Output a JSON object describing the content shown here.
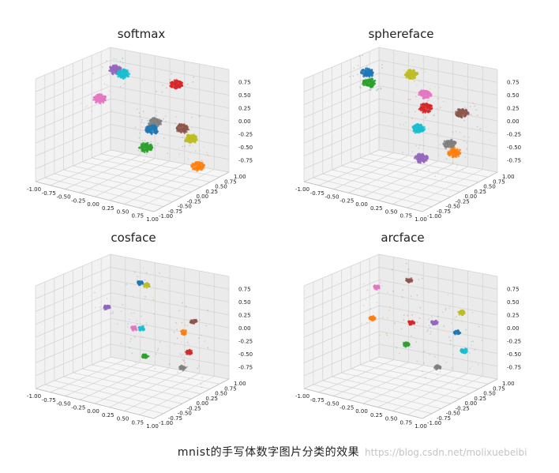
{
  "caption": "mnist的手写体数字图片分类的效果",
  "watermark": "https://blog.csdn.net/molixuebeibi",
  "chart_data": [
    {
      "type": "scatter",
      "title": "softmax",
      "xlim": [
        -1.0,
        1.0
      ],
      "ylim": [
        -1.0,
        1.0
      ],
      "zlim": [
        -1.0,
        1.0
      ],
      "x_ticks": [
        "-1.00",
        "-0.75",
        "-0.50",
        "-0.25",
        "0.00",
        "0.25",
        "0.50",
        "0.75",
        "1.00"
      ],
      "y_ticks": [
        "-1.00",
        "-0.75",
        "-0.50",
        "-0.25",
        "0.00",
        "0.25",
        "0.50",
        "0.75",
        "1.00"
      ],
      "z_ticks": [
        "-0.75",
        "-0.50",
        "-0.25",
        "0.00",
        "0.25",
        "0.50",
        "0.75"
      ],
      "grid": true,
      "clusters": [
        {
          "color": "#9467bd",
          "x": -0.55,
          "y": 0.3,
          "z": 0.75
        },
        {
          "color": "#17becf",
          "x": -0.4,
          "y": 0.35,
          "z": 0.72
        },
        {
          "color": "#d62728",
          "x": 0.55,
          "y": 0.55,
          "z": 0.8
        },
        {
          "color": "#e377c2",
          "x": -0.95,
          "y": -0.2,
          "z": 0.05
        },
        {
          "color": "#8c564b",
          "x": 0.55,
          "y": 0.2,
          "z": -0.05
        },
        {
          "color": "#bcbd22",
          "x": 0.7,
          "y": 0.2,
          "z": -0.2
        },
        {
          "color": "#7f7f7f",
          "x": -0.05,
          "y": -0.3,
          "z": -0.15
        },
        {
          "color": "#1f77b4",
          "x": -0.1,
          "y": -0.3,
          "z": -0.3
        },
        {
          "color": "#2ca02c",
          "x": -0.35,
          "y": -0.8,
          "z": -0.75
        },
        {
          "color": "#ff7f0e",
          "x": 0.7,
          "y": -0.2,
          "z": -0.75
        }
      ]
    },
    {
      "type": "scatter",
      "title": "sphereface",
      "xlim": [
        -1.0,
        1.0
      ],
      "ylim": [
        -1.0,
        1.0
      ],
      "zlim": [
        -1.0,
        1.0
      ],
      "x_ticks": [
        "-1.00",
        "-0.75",
        "-0.50",
        "-0.25",
        "0.00",
        "0.25",
        "0.50",
        "0.75",
        "1.00"
      ],
      "y_ticks": [
        "-1.00",
        "-0.75",
        "-0.50",
        "-0.25",
        "0.00",
        "0.25",
        "0.50",
        "0.75",
        "1.00"
      ],
      "z_ticks": [
        "-0.75",
        "-0.50",
        "-0.25",
        "0.00",
        "0.25",
        "0.50",
        "0.75"
      ],
      "grid": true,
      "clusters": [
        {
          "color": "#bcbd22",
          "x": 0.0,
          "y": 0.6,
          "z": 0.85
        },
        {
          "color": "#1f77b4",
          "x": -0.85,
          "y": 0.2,
          "z": 0.6
        },
        {
          "color": "#2ca02c",
          "x": -0.85,
          "y": 0.1,
          "z": 0.4
        },
        {
          "color": "#e377c2",
          "x": 0.15,
          "y": 0.3,
          "z": 0.5
        },
        {
          "color": "#d62728",
          "x": 0.1,
          "y": 0.1,
          "z": 0.2
        },
        {
          "color": "#8c564b",
          "x": 0.75,
          "y": 0.2,
          "z": 0.3
        },
        {
          "color": "#17becf",
          "x": -0.15,
          "y": -0.35,
          "z": -0.3
        },
        {
          "color": "#7f7f7f",
          "x": 0.45,
          "y": -0.1,
          "z": -0.4
        },
        {
          "color": "#ff7f0e",
          "x": 0.5,
          "y": -0.2,
          "z": -0.55
        },
        {
          "color": "#9467bd",
          "x": -0.2,
          "y": -0.7,
          "z": -0.9
        }
      ]
    },
    {
      "type": "scatter",
      "title": "cosface",
      "xlim": [
        -1.0,
        1.0
      ],
      "ylim": [
        -1.0,
        1.0
      ],
      "zlim": [
        -1.0,
        1.0
      ],
      "x_ticks": [
        "-1.00",
        "-0.75",
        "-0.50",
        "-0.25",
        "0.00",
        "0.25",
        "0.50",
        "0.75",
        "1.00"
      ],
      "y_ticks": [
        "-1.00",
        "-0.75",
        "-0.50",
        "-0.25",
        "0.00",
        "0.25",
        "0.50",
        "0.75",
        "1.00"
      ],
      "z_ticks": [
        "-0.75",
        "-0.50",
        "-0.25",
        "0.00",
        "0.25",
        "0.50",
        "0.75"
      ],
      "grid": true,
      "clusters": [
        {
          "color": "#1f77b4",
          "x": -0.05,
          "y": 0.55,
          "z": 0.8
        },
        {
          "color": "#bcbd22",
          "x": 0.05,
          "y": 0.55,
          "z": 0.78
        },
        {
          "color": "#8c564b",
          "x": 0.8,
          "y": 0.4,
          "z": 0.3
        },
        {
          "color": "#9467bd",
          "x": -0.75,
          "y": 0.1,
          "z": 0.1
        },
        {
          "color": "#ff7f0e",
          "x": 0.55,
          "y": 0.1,
          "z": 0.0
        },
        {
          "color": "#e377c2",
          "x": -0.35,
          "y": -0.1,
          "z": -0.2
        },
        {
          "color": "#17becf",
          "x": -0.2,
          "y": -0.05,
          "z": -0.15
        },
        {
          "color": "#d62728",
          "x": 0.55,
          "y": -0.2,
          "z": -0.4
        },
        {
          "color": "#2ca02c",
          "x": -0.3,
          "y": -0.6,
          "z": -0.75
        },
        {
          "color": "#7f7f7f",
          "x": 0.4,
          "y": -0.35,
          "z": -0.75
        }
      ]
    },
    {
      "type": "scatter",
      "title": "arcface",
      "xlim": [
        -1.0,
        1.0
      ],
      "ylim": [
        -1.0,
        1.0
      ],
      "zlim": [
        -1.0,
        1.0
      ],
      "x_ticks": [
        "-1.00",
        "-0.75",
        "-0.50",
        "-0.25",
        "0.00",
        "0.25",
        "0.50",
        "0.75",
        "1.00"
      ],
      "y_ticks": [
        "-1.00",
        "-0.75",
        "-0.50",
        "-0.25",
        "0.00",
        "0.25",
        "0.50",
        "0.75",
        "1.00"
      ],
      "z_ticks": [
        "-0.75",
        "-0.50",
        "-0.25",
        "0.00",
        "0.25",
        "0.50",
        "0.75"
      ],
      "grid": true,
      "clusters": [
        {
          "color": "#8c564b",
          "x": -0.05,
          "y": 0.55,
          "z": 0.85
        },
        {
          "color": "#bcbd22",
          "x": 0.85,
          "y": 0.6,
          "z": 0.5
        },
        {
          "color": "#e377c2",
          "x": -0.7,
          "y": 0.2,
          "z": 0.5
        },
        {
          "color": "#9467bd",
          "x": 0.25,
          "y": 0.1,
          "z": 0.1
        },
        {
          "color": "#1f77b4",
          "x": 0.6,
          "y": 0.0,
          "z": 0.0
        },
        {
          "color": "#d62728",
          "x": -0.2,
          "y": -0.1,
          "z": -0.05
        },
        {
          "color": "#ff7f0e",
          "x": -0.85,
          "y": -0.1,
          "z": -0.15
        },
        {
          "color": "#17becf",
          "x": 0.65,
          "y": -0.25,
          "z": -0.35
        },
        {
          "color": "#2ca02c",
          "x": -0.4,
          "y": -0.5,
          "z": -0.55
        },
        {
          "color": "#7f7f7f",
          "x": 0.1,
          "y": -0.6,
          "z": -0.85
        }
      ]
    }
  ]
}
